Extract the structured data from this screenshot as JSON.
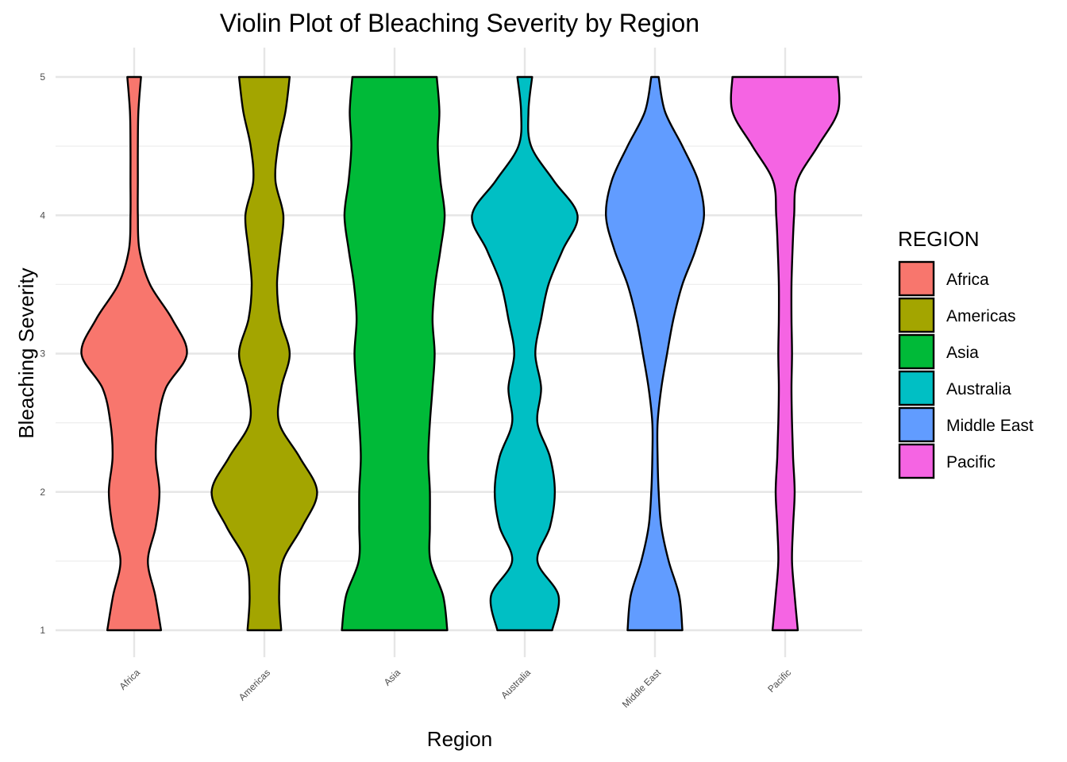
{
  "chart_data": {
    "type": "violin",
    "title": "Violin Plot of Bleaching Severity by Region",
    "xlabel": "Region",
    "ylabel": "Bleaching Severity",
    "ylim": [
      1,
      5
    ],
    "yticks": [
      1,
      2,
      3,
      4,
      5
    ],
    "categories": [
      "Africa",
      "Americas",
      "Asia",
      "Australia",
      "Middle East",
      "Pacific"
    ],
    "legend": {
      "title": "REGION",
      "position": "right"
    },
    "grid": true,
    "colors": {
      "Africa": "#F8766D",
      "Americas": "#A3A500",
      "Asia": "#00BA38",
      "Australia": "#00BFC4",
      "Middle East": "#619CFF",
      "Pacific": "#F564E3"
    },
    "density_y": [
      1.0,
      1.25,
      1.5,
      1.75,
      2.0,
      2.25,
      2.5,
      2.75,
      3.0,
      3.25,
      3.5,
      3.75,
      4.0,
      4.25,
      4.5,
      4.75,
      5.0
    ],
    "series": [
      {
        "name": "Africa",
        "relative_width": [
          0.51,
          0.4,
          0.26,
          0.41,
          0.48,
          0.41,
          0.45,
          0.6,
          1.0,
          0.72,
          0.3,
          0.1,
          0.07,
          0.07,
          0.07,
          0.08,
          0.13
        ]
      },
      {
        "name": "Americas",
        "relative_width": [
          0.32,
          0.28,
          0.35,
          0.72,
          1.0,
          0.67,
          0.28,
          0.32,
          0.48,
          0.3,
          0.24,
          0.3,
          0.36,
          0.21,
          0.26,
          0.4,
          0.48
        ]
      },
      {
        "name": "Asia",
        "relative_width": [
          1.0,
          0.92,
          0.68,
          0.67,
          0.67,
          0.64,
          0.67,
          0.72,
          0.76,
          0.72,
          0.77,
          0.87,
          0.95,
          0.87,
          0.82,
          0.85,
          0.8
        ]
      },
      {
        "name": "Australia",
        "relative_width": [
          0.52,
          0.64,
          0.24,
          0.48,
          0.57,
          0.48,
          0.24,
          0.31,
          0.2,
          0.31,
          0.45,
          0.72,
          1.0,
          0.55,
          0.12,
          0.07,
          0.14
        ]
      },
      {
        "name": "Middle East",
        "relative_width": [
          0.52,
          0.46,
          0.26,
          0.12,
          0.07,
          0.05,
          0.05,
          0.12,
          0.23,
          0.35,
          0.52,
          0.77,
          0.93,
          0.82,
          0.52,
          0.19,
          0.07
        ]
      },
      {
        "name": "Pacific",
        "relative_width": [
          0.24,
          0.18,
          0.13,
          0.15,
          0.18,
          0.15,
          0.13,
          0.12,
          0.13,
          0.12,
          0.12,
          0.14,
          0.17,
          0.23,
          0.62,
          1.0,
          1.0
        ]
      }
    ]
  }
}
